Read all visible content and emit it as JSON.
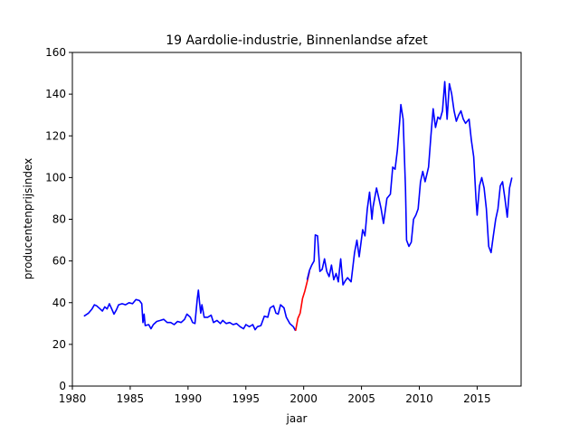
{
  "chart_data": {
    "type": "line",
    "title": "19 Aardolie-industrie, Binnenlandse afzet",
    "xlabel": "jaar",
    "ylabel": "producentenprijsindex",
    "xlim": [
      1980,
      2018.8
    ],
    "ylim": [
      0,
      160
    ],
    "xticks": [
      1980,
      1985,
      1990,
      1995,
      2000,
      2005,
      2010,
      2015
    ],
    "yticks": [
      0,
      20,
      40,
      60,
      80,
      100,
      120,
      140,
      160
    ],
    "grid": false,
    "legend": "none",
    "series": [
      {
        "color": "#0000ff",
        "points": [
          [
            1981.0,
            33.5
          ],
          [
            1981.4,
            35.0
          ],
          [
            1981.7,
            37.0
          ],
          [
            1981.9,
            39.0
          ],
          [
            1982.1,
            38.5
          ],
          [
            1982.4,
            37.0
          ],
          [
            1982.6,
            36.0
          ],
          [
            1982.8,
            38.0
          ],
          [
            1983.0,
            37.0
          ],
          [
            1983.2,
            39.5
          ],
          [
            1983.4,
            37.0
          ],
          [
            1983.6,
            34.5
          ],
          [
            1983.8,
            36.5
          ],
          [
            1984.0,
            39.0
          ],
          [
            1984.3,
            39.5
          ],
          [
            1984.6,
            39.0
          ],
          [
            1984.9,
            40.0
          ],
          [
            1985.2,
            39.5
          ],
          [
            1985.5,
            41.5
          ],
          [
            1985.8,
            41.0
          ],
          [
            1986.0,
            39.5
          ],
          [
            1986.1,
            30.5
          ],
          [
            1986.2,
            34.5
          ],
          [
            1986.3,
            29.0
          ],
          [
            1986.6,
            29.5
          ],
          [
            1986.8,
            27.5
          ],
          [
            1987.0,
            29.5
          ],
          [
            1987.3,
            31.0
          ],
          [
            1987.6,
            31.5
          ],
          [
            1987.9,
            32.0
          ],
          [
            1988.2,
            30.5
          ],
          [
            1988.5,
            30.5
          ],
          [
            1988.8,
            29.5
          ],
          [
            1989.1,
            31.0
          ],
          [
            1989.4,
            30.5
          ],
          [
            1989.7,
            32.0
          ],
          [
            1989.9,
            34.5
          ],
          [
            1990.2,
            33.0
          ],
          [
            1990.4,
            30.5
          ],
          [
            1990.6,
            30.0
          ],
          [
            1990.8,
            42.0
          ],
          [
            1990.9,
            46.0
          ],
          [
            1991.0,
            40.0
          ],
          [
            1991.1,
            35.0
          ],
          [
            1991.2,
            39.0
          ],
          [
            1991.4,
            33.0
          ],
          [
            1991.7,
            33.0
          ],
          [
            1992.0,
            34.0
          ],
          [
            1992.2,
            30.5
          ],
          [
            1992.5,
            31.5
          ],
          [
            1992.8,
            30.0
          ],
          [
            1993.0,
            31.5
          ],
          [
            1993.3,
            30.0
          ],
          [
            1993.6,
            30.5
          ],
          [
            1993.9,
            29.5
          ],
          [
            1994.2,
            30.0
          ],
          [
            1994.5,
            28.5
          ],
          [
            1994.8,
            27.5
          ],
          [
            1995.0,
            29.5
          ],
          [
            1995.3,
            28.5
          ],
          [
            1995.6,
            29.5
          ],
          [
            1995.8,
            27.0
          ],
          [
            1996.0,
            28.5
          ],
          [
            1996.3,
            29.0
          ],
          [
            1996.6,
            33.5
          ],
          [
            1996.9,
            33.0
          ],
          [
            1997.1,
            37.5
          ],
          [
            1997.4,
            38.5
          ],
          [
            1997.6,
            35.0
          ],
          [
            1997.8,
            34.5
          ],
          [
            1998.0,
            39.0
          ],
          [
            1998.3,
            37.5
          ],
          [
            1998.5,
            33.0
          ],
          [
            1998.8,
            30.0
          ],
          [
            1999.1,
            28.5
          ],
          [
            1999.3,
            26.5
          ]
        ]
      },
      {
        "color": "#ff0000",
        "points": [
          [
            1999.3,
            26.5
          ],
          [
            1999.5,
            32.5
          ],
          [
            1999.7,
            35.0
          ],
          [
            1999.9,
            42.0
          ],
          [
            2000.1,
            45.5
          ],
          [
            2000.3,
            50.0
          ],
          [
            2000.5,
            55.0
          ]
        ]
      },
      {
        "color": "#0000ff",
        "points": [
          [
            2000.3,
            51.0
          ],
          [
            2000.5,
            55.5
          ],
          [
            2000.7,
            58.0
          ],
          [
            2000.9,
            60.0
          ],
          [
            2001.0,
            72.5
          ],
          [
            2001.2,
            72.0
          ],
          [
            2001.4,
            55.0
          ],
          [
            2001.6,
            56.0
          ],
          [
            2001.8,
            61.0
          ],
          [
            2002.0,
            55.0
          ],
          [
            2002.2,
            52.5
          ],
          [
            2002.4,
            58.0
          ],
          [
            2002.6,
            51.0
          ],
          [
            2002.8,
            54.0
          ],
          [
            2003.0,
            50.0
          ],
          [
            2003.1,
            56.0
          ],
          [
            2003.2,
            61.0
          ],
          [
            2003.4,
            48.5
          ],
          [
            2003.6,
            50.5
          ],
          [
            2003.8,
            52.0
          ],
          [
            2004.1,
            50.0
          ],
          [
            2004.4,
            64.0
          ],
          [
            2004.6,
            70.0
          ],
          [
            2004.8,
            62.0
          ],
          [
            2005.1,
            75.0
          ],
          [
            2005.3,
            72.0
          ],
          [
            2005.5,
            85.0
          ],
          [
            2005.7,
            93.0
          ],
          [
            2005.9,
            80.0
          ],
          [
            2006.0,
            86.0
          ],
          [
            2006.3,
            95.0
          ],
          [
            2006.5,
            90.0
          ],
          [
            2006.7,
            85.0
          ],
          [
            2006.9,
            78.0
          ],
          [
            2007.2,
            90.0
          ],
          [
            2007.5,
            92.0
          ],
          [
            2007.7,
            105.0
          ],
          [
            2007.9,
            104.0
          ],
          [
            2008.1,
            113.0
          ],
          [
            2008.3,
            127.0
          ],
          [
            2008.4,
            135.0
          ],
          [
            2008.6,
            128.0
          ],
          [
            2008.8,
            95.0
          ],
          [
            2008.9,
            70.0
          ],
          [
            2009.1,
            67.0
          ],
          [
            2009.3,
            69.0
          ],
          [
            2009.5,
            80.0
          ],
          [
            2009.7,
            82.0
          ],
          [
            2009.9,
            85.0
          ],
          [
            2010.1,
            98.0
          ],
          [
            2010.3,
            103.0
          ],
          [
            2010.5,
            98.0
          ],
          [
            2010.8,
            105.0
          ],
          [
            2011.0,
            120.0
          ],
          [
            2011.2,
            133.0
          ],
          [
            2011.4,
            124.0
          ],
          [
            2011.6,
            129.0
          ],
          [
            2011.8,
            128.0
          ],
          [
            2012.0,
            132.0
          ],
          [
            2012.2,
            146.0
          ],
          [
            2012.4,
            128.0
          ],
          [
            2012.6,
            145.0
          ],
          [
            2012.8,
            140.0
          ],
          [
            2013.0,
            132.0
          ],
          [
            2013.2,
            127.0
          ],
          [
            2013.4,
            130.0
          ],
          [
            2013.6,
            132.0
          ],
          [
            2013.8,
            128.0
          ],
          [
            2014.0,
            126.0
          ],
          [
            2014.3,
            128.0
          ],
          [
            2014.5,
            118.0
          ],
          [
            2014.7,
            110.0
          ],
          [
            2014.9,
            90.0
          ],
          [
            2015.0,
            82.0
          ],
          [
            2015.2,
            96.0
          ],
          [
            2015.4,
            100.0
          ],
          [
            2015.6,
            95.0
          ],
          [
            2015.8,
            85.0
          ],
          [
            2016.0,
            67.0
          ],
          [
            2016.2,
            64.0
          ],
          [
            2016.4,
            72.0
          ],
          [
            2016.6,
            80.0
          ],
          [
            2016.8,
            85.0
          ],
          [
            2017.0,
            96.0
          ],
          [
            2017.2,
            98.0
          ],
          [
            2017.4,
            90.0
          ],
          [
            2017.6,
            81.0
          ],
          [
            2017.8,
            95.0
          ],
          [
            2018.0,
            100.0
          ]
        ]
      }
    ]
  }
}
